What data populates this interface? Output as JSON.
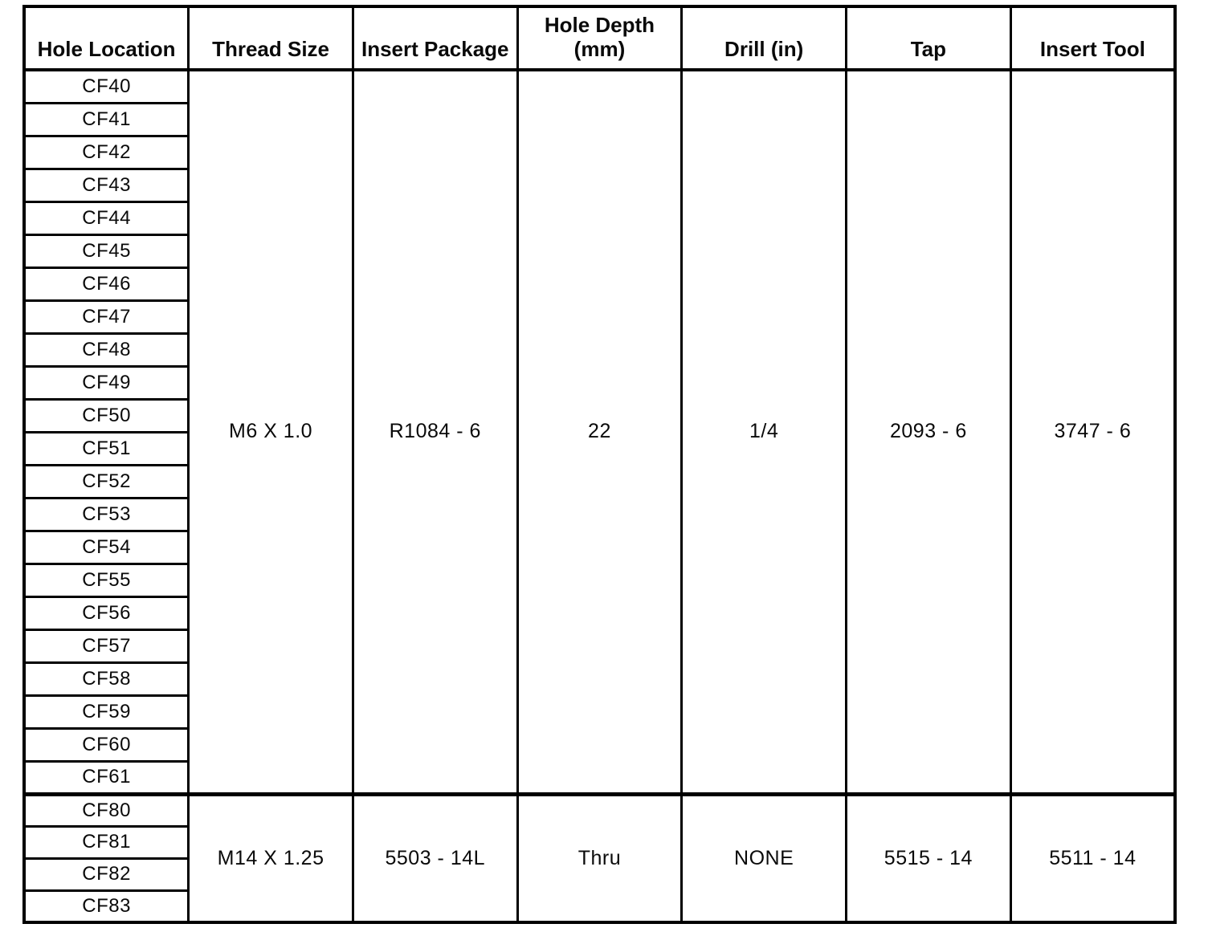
{
  "colors": {
    "background": "#ffffff",
    "line": "#000000",
    "text": "#0a0a0a"
  },
  "table": {
    "columns": [
      "Hole Location",
      "Thread Size",
      "Insert Package",
      "Hole Depth\n(mm)",
      "Drill (in)",
      "Tap",
      "Insert Tool"
    ],
    "groups": [
      {
        "holes": [
          "CF40",
          "CF41",
          "CF42",
          "CF43",
          "CF44",
          "CF45",
          "CF46",
          "CF47",
          "CF48",
          "CF49",
          "CF50",
          "CF51",
          "CF52",
          "CF53",
          "CF54",
          "CF55",
          "CF56",
          "CF57",
          "CF58",
          "CF59",
          "CF60",
          "CF61"
        ],
        "thread_size": "M6 X 1.0",
        "insert_package": "R1084 - 6",
        "hole_depth_mm": "22",
        "drill_in": "1/4",
        "tap": "2093 - 6",
        "insert_tool": "3747 - 6"
      },
      {
        "holes": [
          "CF80",
          "CF81",
          "CF82",
          "CF83"
        ],
        "thread_size": "M14 X 1.25",
        "insert_package": "5503 - 14L",
        "hole_depth_mm": "Thru",
        "drill_in": "NONE",
        "tap": "5515 - 14",
        "insert_tool": "5511 - 14"
      }
    ]
  }
}
